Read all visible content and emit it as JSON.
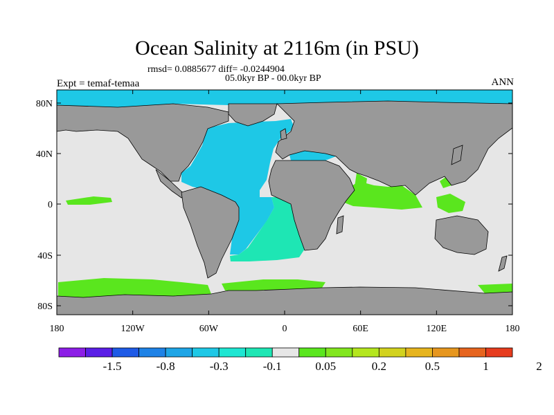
{
  "title": "Ocean Salinity at 2116m (in PSU)",
  "stats": "rmsd= 0.0885677 diff= -0.0244904",
  "period": "05.0kyr BP - 00.0kyr BP",
  "experiment": "Expt = temaf-temaa",
  "season": "ANN",
  "lat_ticks": [
    "80N",
    "40N",
    "0",
    "40S",
    "80S"
  ],
  "lon_ticks": [
    "180",
    "120W",
    "60W",
    "0",
    "60E",
    "120E",
    "180"
  ],
  "colorbar": {
    "colors": [
      "#8c1ee6",
      "#5a1ee6",
      "#1e5ae6",
      "#1e82e6",
      "#1ea5e6",
      "#1ec8e6",
      "#1ee6d2",
      "#1ee6b4",
      "#e6e6e6",
      "#5ae61e",
      "#82e61e",
      "#b4e61e",
      "#d2d21e",
      "#e6b41e",
      "#e6961e",
      "#e6641e",
      "#e63c1e"
    ],
    "labels": [
      "-1.5",
      "-0.8",
      "-0.3",
      "-0.1",
      "0.05",
      "0.2",
      "0.5",
      "1",
      "2"
    ]
  },
  "colors": {
    "land": "#999999",
    "ocean_no_change": "#e6e6e6",
    "atlantic_anomaly": "#1ec8e6",
    "south_atlantic_anomaly": "#1ee6b4",
    "positive_anomaly": "#5ae61e"
  }
}
